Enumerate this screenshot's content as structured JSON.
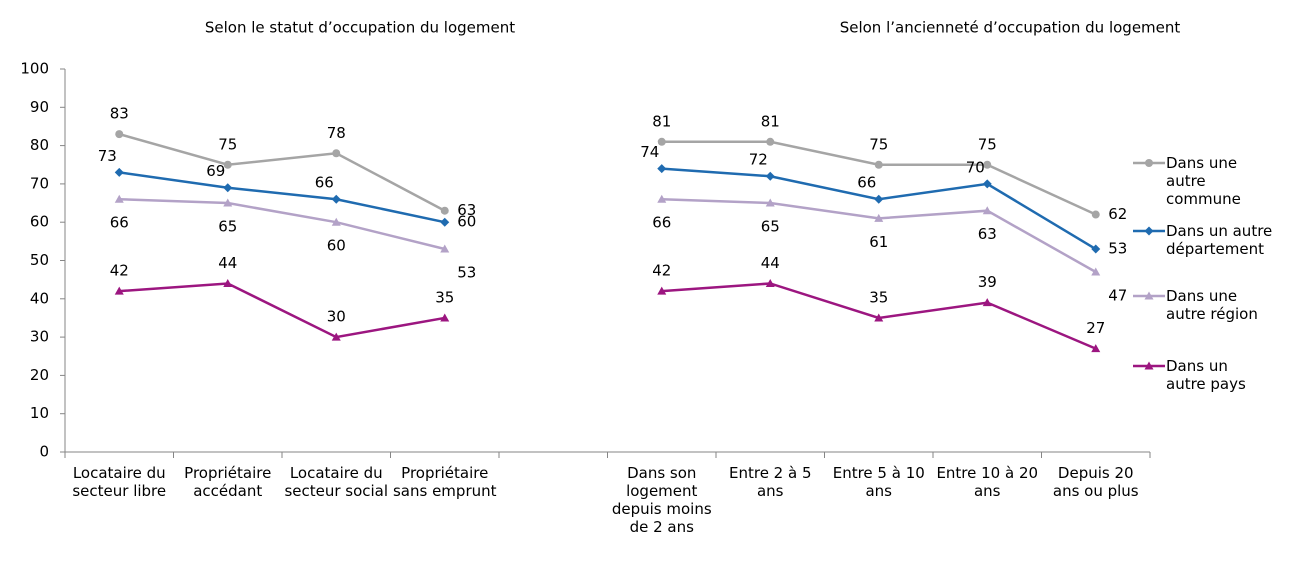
{
  "chart_data": {
    "type": "line",
    "panel_titles": [
      "Selon le statut d’occupation du logement",
      "Selon l’ancienneté d’occupation du logement"
    ],
    "categories": [
      "Locataire du secteur libre",
      "Propriétaire accédant",
      "Locataire du secteur social",
      "Propriétaire sans emprunt",
      null,
      "Dans son logement depuis moins de 2 ans",
      "Entre 2 à 5 ans",
      "Entre 5 à 10 ans",
      "Entre 10 à 20 ans",
      "Depuis 20 ans ou plus"
    ],
    "series": [
      {
        "name": "Dans une autre commune",
        "color": "#a5a5a5",
        "marker": "circle",
        "values": [
          83,
          75,
          78,
          63,
          null,
          81,
          81,
          75,
          75,
          62
        ]
      },
      {
        "name": "Dans un autre département",
        "color": "#1f6bb0",
        "marker": "diamond",
        "values": [
          73,
          69,
          66,
          60,
          null,
          74,
          72,
          66,
          70,
          53
        ]
      },
      {
        "name": "Dans une autre région",
        "color": "#b3a2c7",
        "marker": "triangle",
        "values": [
          66,
          65,
          60,
          53,
          null,
          66,
          65,
          61,
          63,
          47
        ]
      },
      {
        "name": "Dans un autre pays",
        "color": "#9c1680",
        "marker": "triangle",
        "values": [
          42,
          44,
          30,
          35,
          null,
          42,
          44,
          35,
          39,
          27
        ]
      }
    ],
    "ylim": [
      0,
      100
    ],
    "yticks": [
      0,
      10,
      20,
      30,
      40,
      50,
      60,
      70,
      80,
      90,
      100
    ],
    "legend": "right"
  }
}
